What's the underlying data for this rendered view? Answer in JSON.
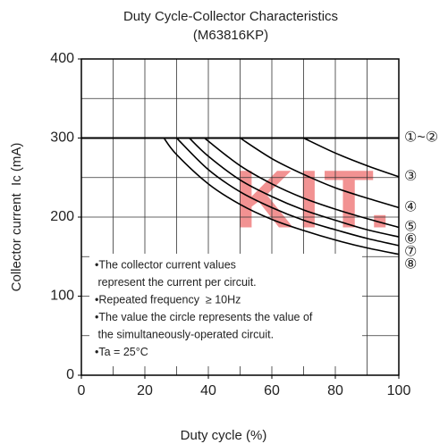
{
  "chart_data": {
    "type": "line",
    "title": [
      "Duty Cycle-Collector Characteristics",
      "(M63816KP)"
    ],
    "x_label": "Duty cycle (%)",
    "y_label": "Collector current  Ic (mA)",
    "xlim": [
      0,
      100
    ],
    "ylim": [
      0,
      400
    ],
    "xticks": [
      0,
      20,
      40,
      60,
      80,
      100
    ],
    "yticks": [
      0,
      100,
      200,
      300,
      400
    ],
    "xgrid": [
      10,
      20,
      30,
      40,
      50,
      60,
      70,
      80,
      90
    ],
    "ygrid": [
      50,
      100,
      150,
      200,
      250,
      350
    ],
    "grid": true,
    "series": [
      {
        "name": "①~②",
        "color": "#000000",
        "x": [
          0,
          100
        ],
        "values": [
          300,
          300
        ]
      },
      {
        "name": "③",
        "color": "#000000",
        "x": [
          70,
          80,
          90,
          100
        ],
        "values": [
          300,
          281,
          265,
          251
        ]
      },
      {
        "name": "④",
        "color": "#000000",
        "x": [
          50,
          60,
          70,
          80,
          90,
          100
        ],
        "values": [
          300,
          274,
          254,
          237,
          224,
          212
        ]
      },
      {
        "name": "⑤",
        "color": "#000000",
        "x": [
          39,
          40,
          50,
          60,
          70,
          80,
          90,
          100
        ],
        "values": [
          300,
          296,
          265,
          242,
          224,
          210,
          198,
          187
        ]
      },
      {
        "name": "⑥",
        "color": "#000000",
        "x": [
          34,
          40,
          50,
          60,
          70,
          80,
          90,
          100
        ],
        "values": [
          300,
          277,
          247,
          226,
          209,
          196,
          184,
          175
        ]
      },
      {
        "name": "⑦",
        "color": "#000000",
        "x": [
          30,
          40,
          50,
          60,
          70,
          80,
          90,
          100
        ],
        "values": [
          300,
          260,
          232,
          212,
          196,
          184,
          173,
          164
        ]
      },
      {
        "name": "⑧",
        "color": "#000000",
        "x": [
          26,
          30,
          40,
          50,
          60,
          70,
          80,
          90,
          100
        ],
        "values": [
          300,
          279,
          242,
          216,
          197,
          183,
          171,
          161,
          153
        ]
      }
    ],
    "notes": [
      "•The collector current values",
      " represent the current per circuit.",
      "•Repeated frequency  ≥ 10Hz",
      "•The value the circle represents the value of",
      " the simultaneously-operated circuit.",
      "•Ta = 25°C"
    ],
    "watermark": "KIT."
  }
}
